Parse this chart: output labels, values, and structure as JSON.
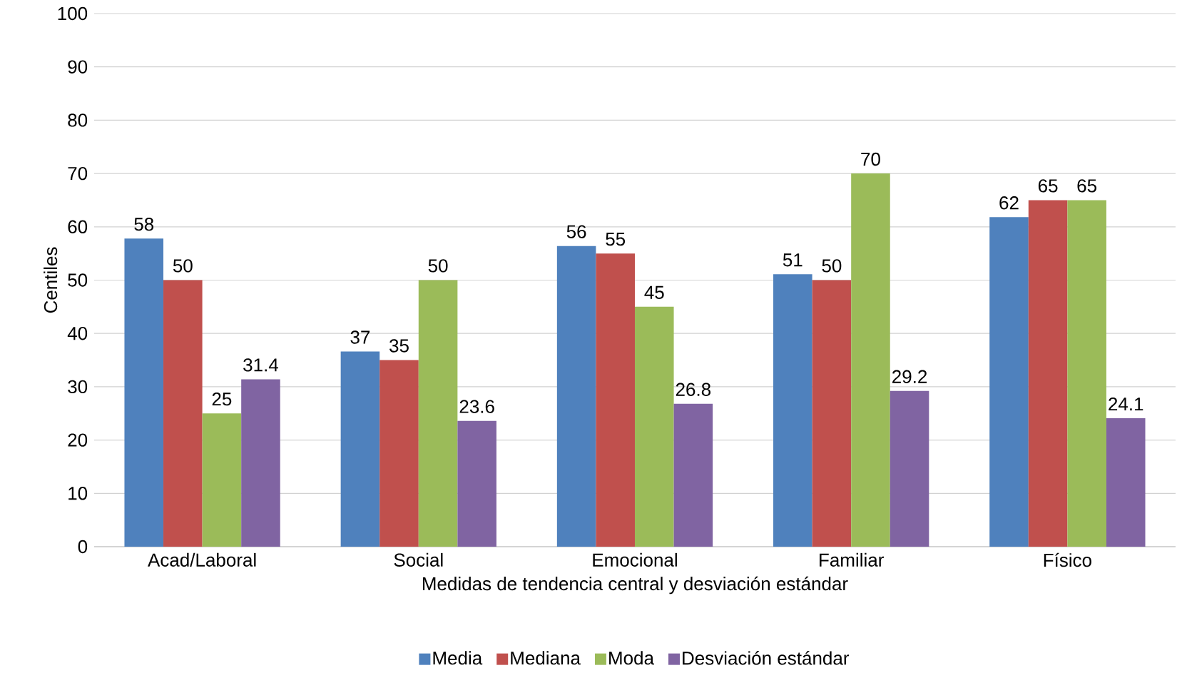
{
  "chart_data": {
    "type": "bar",
    "xlabel": "Medidas de tendencia central y desviación estándar",
    "ylabel": "Centiles",
    "categories": [
      "Acad/Laboral",
      "Social",
      "Emocional",
      "Familiar",
      "Físico"
    ],
    "series": [
      {
        "name": "Media",
        "color": "#4f81bd",
        "values": [
          57.8,
          36.6,
          56.4,
          51.1,
          61.8
        ],
        "value_labels": [
          "58",
          "37",
          "56",
          "51",
          "62"
        ]
      },
      {
        "name": "Mediana",
        "color": "#c0504d",
        "values": [
          50,
          35,
          55,
          50,
          65
        ],
        "value_labels": [
          "50",
          "35",
          "55",
          "50",
          "65"
        ]
      },
      {
        "name": "Moda",
        "color": "#9bbb59",
        "values": [
          25,
          50,
          45,
          70,
          65
        ],
        "value_labels": [
          "25",
          "50",
          "45",
          "70",
          "65"
        ]
      },
      {
        "name": "Desviación estándar",
        "color": "#8064a2",
        "values": [
          31.4,
          23.6,
          26.8,
          29.2,
          24.1
        ],
        "value_labels": [
          "31.4",
          "23.6",
          "26.8",
          "29.2",
          "24.1"
        ]
      }
    ],
    "ylim": [
      0,
      100
    ],
    "yticks": [
      0,
      10,
      20,
      30,
      40,
      50,
      60,
      70,
      80,
      90,
      100
    ],
    "grid": "y",
    "legend": "bottom"
  }
}
